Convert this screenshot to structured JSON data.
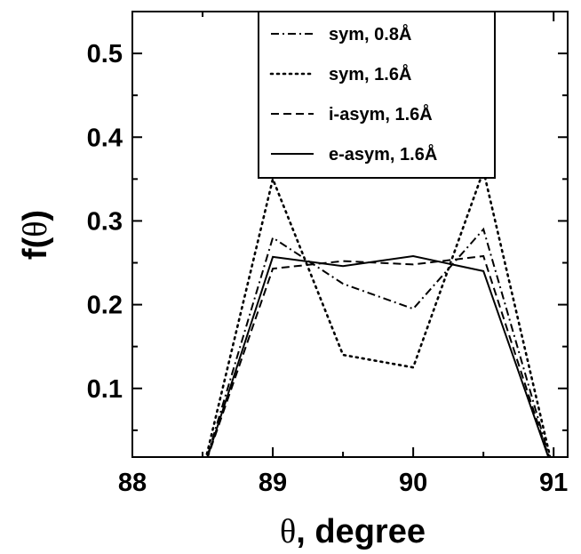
{
  "chart_data": {
    "type": "line",
    "xlabel_symbol": "θ",
    "xlabel_rest": ", degree",
    "ylabel_prefix": "f(",
    "ylabel_symbol": "θ",
    "ylabel_suffix": ")",
    "xlim": [
      88,
      91.1
    ],
    "ylim": [
      0.018,
      0.55
    ],
    "xticks": [
      88,
      89,
      90,
      91
    ],
    "xtick_labels": [
      "88",
      "89",
      "90",
      "91"
    ],
    "xminor": [
      88.5,
      89.5,
      90.5
    ],
    "yticks": [
      0.1,
      0.2,
      0.3,
      0.4,
      0.5
    ],
    "ytick_labels": [
      "0.1",
      "0.2",
      "0.3",
      "0.4",
      "0.5"
    ],
    "yminor": [
      0.05,
      0.15,
      0.25,
      0.35,
      0.45
    ],
    "grid": false,
    "legend_position": "top-right",
    "series": [
      {
        "name": "sym, 0.8Å",
        "style": "dashdot",
        "x": [
          88.5,
          89.0,
          89.5,
          90.0,
          90.5,
          91.0
        ],
        "y": [
          0.0,
          0.28,
          0.225,
          0.195,
          0.29,
          0.0
        ]
      },
      {
        "name": "sym, 1.6Å",
        "style": "dotted",
        "x": [
          88.5,
          89.0,
          89.5,
          90.0,
          90.5,
          91.0
        ],
        "y": [
          0.0,
          0.35,
          0.14,
          0.125,
          0.36,
          0.0
        ]
      },
      {
        "name": "i-asym, 1.6Å",
        "style": "dashed",
        "x": [
          88.5,
          89.0,
          89.5,
          90.0,
          90.5,
          91.0
        ],
        "y": [
          0.0,
          0.243,
          0.252,
          0.248,
          0.258,
          0.0
        ]
      },
      {
        "name": "e-asym, 1.6Å",
        "style": "solid",
        "x": [
          88.5,
          89.0,
          89.5,
          90.0,
          90.5,
          91.0
        ],
        "y": [
          0.0,
          0.257,
          0.246,
          0.258,
          0.24,
          0.0
        ]
      }
    ]
  }
}
